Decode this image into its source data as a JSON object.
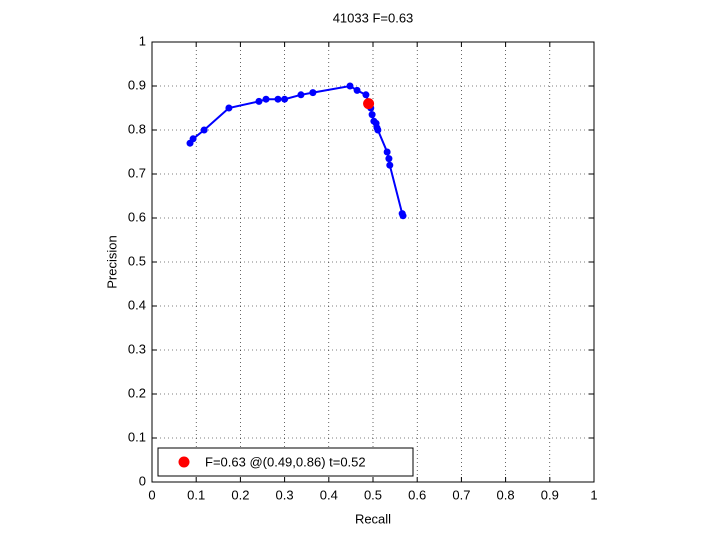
{
  "chart_data": {
    "type": "line",
    "title": "41033 F=0.63",
    "x_label": "Recall",
    "y_label": "Precision",
    "xlim": [
      0,
      1
    ],
    "ylim": [
      0,
      1
    ],
    "xticks": [
      0,
      0.1,
      0.2,
      0.3,
      0.4,
      0.5,
      0.6,
      0.7,
      0.8,
      0.9,
      1
    ],
    "yticks": [
      0,
      0.1,
      0.2,
      0.3,
      0.4,
      0.5,
      0.6,
      0.7,
      0.8,
      0.9,
      1
    ],
    "grid": true,
    "legend_position": "lower left",
    "series": [
      {
        "color": "#0000ff",
        "line": true,
        "marker_size": 3.5,
        "x": [
          0.086,
          0.093,
          0.118,
          0.174,
          0.242,
          0.258,
          0.285,
          0.3,
          0.337,
          0.364,
          0.448,
          0.464,
          0.484,
          0.495,
          0.498,
          0.502,
          0.507,
          0.509,
          0.511,
          0.532,
          0.536,
          0.538,
          0.566,
          0.568
        ],
        "values": [
          0.77,
          0.78,
          0.8,
          0.85,
          0.865,
          0.87,
          0.87,
          0.87,
          0.88,
          0.885,
          0.9,
          0.89,
          0.88,
          0.85,
          0.835,
          0.82,
          0.815,
          0.805,
          0.8,
          0.75,
          0.735,
          0.72,
          0.61,
          0.605
        ]
      },
      {
        "name": "F=0.63 @(0.49,0.86) t=0.52",
        "color": "#ff0000",
        "line": false,
        "marker_size": 5.5,
        "x": [
          0.49
        ],
        "values": [
          0.86
        ]
      }
    ]
  }
}
